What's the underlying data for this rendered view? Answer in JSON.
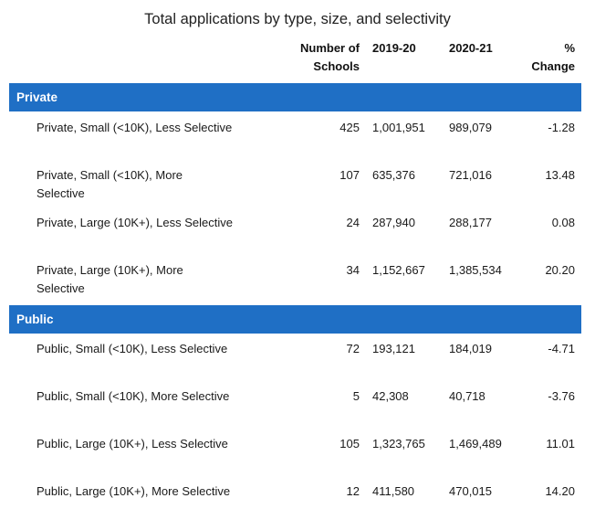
{
  "title": "Total applications by type, size, and selectivity",
  "headers": {
    "num_schools": "Number of Schools",
    "year1": "2019-20",
    "year2": "2020-21",
    "pct_change": "% Change"
  },
  "sections": [
    {
      "label": "Private",
      "rows": [
        {
          "name": "Private, Small (<10K), Less Selective",
          "schools": "425",
          "y2019": "1,001,951",
          "y2020": "989,079",
          "change": "-1.28"
        },
        {
          "name": "Private, Small (<10K), More Selective",
          "schools": "107",
          "y2019": "635,376",
          "y2020": "721,016",
          "change": "13.48"
        },
        {
          "name": "Private, Large (10K+), Less Selective",
          "schools": "24",
          "y2019": "287,940",
          "y2020": "288,177",
          "change": "0.08"
        },
        {
          "name": "Private, Large (10K+), More Selective",
          "schools": "34",
          "y2019": "1,152,667",
          "y2020": "1,385,534",
          "change": "20.20"
        }
      ]
    },
    {
      "label": "Public",
      "rows": [
        {
          "name": "Public, Small (<10K), Less Selective",
          "schools": "72",
          "y2019": "193,121",
          "y2020": "184,019",
          "change": "-4.71"
        },
        {
          "name": "Public, Small (<10K), More Selective",
          "schools": "5",
          "y2019": "42,308",
          "y2020": "40,718",
          "change": "-3.76"
        },
        {
          "name": "Public, Large (10K+), Less Selective",
          "schools": "105",
          "y2019": "1,323,765",
          "y2020": "1,469,489",
          "change": "11.01"
        },
        {
          "name": "Public, Large (10K+), More Selective",
          "schools": "12",
          "y2019": "411,580",
          "y2020": "470,015",
          "change": "14.20"
        }
      ]
    }
  ]
}
